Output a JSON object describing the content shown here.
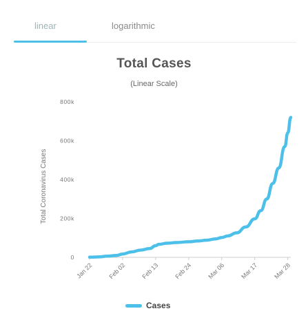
{
  "tabs": [
    {
      "label": "linear",
      "active": true
    },
    {
      "label": "logarithmic",
      "active": false
    }
  ],
  "accent_color": "#4cc0e8",
  "chart_data": {
    "type": "line",
    "title": "Total Cases",
    "subtitle": "(Linear Scale)",
    "ylabel": "Total Coronavirus Cases",
    "xlabel": "",
    "categories": [
      "Jan 22",
      "Feb 02",
      "Feb 13",
      "Feb 24",
      "Mar 06",
      "Mar 17",
      "Mar 28"
    ],
    "ylim": [
      0,
      800000
    ],
    "yticks": [
      0,
      200000,
      400000,
      600000,
      800000
    ],
    "ytick_labels": [
      "0",
      "200k",
      "400k",
      "600k",
      "800k"
    ],
    "grid": false,
    "legend_position": "bottom-center",
    "series": [
      {
        "name": "Cases",
        "color": "#4cc0e8",
        "x": [
          "Jan 22",
          "Jan 25",
          "Jan 28",
          "Jan 31",
          "Feb 02",
          "Feb 05",
          "Feb 08",
          "Feb 11",
          "Feb 13",
          "Feb 14",
          "Feb 17",
          "Feb 20",
          "Feb 24",
          "Feb 27",
          "Mar 01",
          "Mar 04",
          "Mar 06",
          "Mar 08",
          "Mar 11",
          "Mar 14",
          "Mar 17",
          "Mar 19",
          "Mar 21",
          "Mar 23",
          "Mar 25",
          "Mar 27",
          "Mar 28",
          "Mar 29"
        ],
        "values": [
          555,
          2000,
          6000,
          10000,
          17000,
          28000,
          37000,
          45000,
          60000,
          67000,
          73000,
          76000,
          80000,
          84000,
          88000,
          95000,
          102000,
          110000,
          126000,
          156000,
          198000,
          240000,
          300000,
          380000,
          460000,
          570000,
          640000,
          720000
        ]
      }
    ]
  }
}
